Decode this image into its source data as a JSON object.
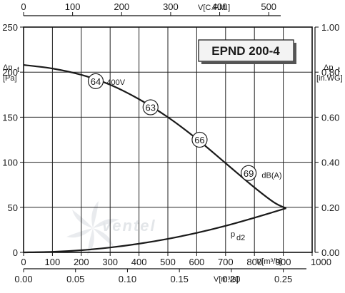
{
  "chart_data": {
    "type": "line",
    "title": "EPND 200-4",
    "x_axes": {
      "bottom": {
        "label": "V[m³/h]",
        "ticks": [
          "0",
          "100",
          "200",
          "300",
          "400",
          "500",
          "600",
          "700",
          "800",
          "900",
          "1000"
        ],
        "range": [
          0,
          1000
        ]
      },
      "top": {
        "label": "V[C.F.M.]",
        "ticks": [
          "0",
          "100",
          "200",
          "300",
          "400",
          "500"
        ],
        "tick_values_m3h": [
          0,
          169.9,
          339.8,
          509.7,
          679.6,
          849.5
        ]
      },
      "bottom2": {
        "label": "V[m³/s]",
        "ticks": [
          "0.00",
          "0.05",
          "0.10",
          "0.15",
          "0.20",
          "0.25"
        ],
        "tick_values_m3h": [
          0,
          180,
          360,
          540,
          720,
          900
        ]
      }
    },
    "y_axes": {
      "left": {
        "label_main": "Δp",
        "label_sub": "t",
        "unit": "[Pa]",
        "ticks": [
          "0",
          "50",
          "100",
          "150",
          "200",
          "250"
        ],
        "range": [
          0,
          250
        ]
      },
      "right": {
        "label_main": "Δp",
        "label_sub": "t",
        "unit": "[in.WG]",
        "ticks": [
          "0.00",
          "0.20",
          "0.40",
          "0.60",
          "0.80",
          "1.00"
        ],
        "tick_values_pa": [
          0,
          50,
          100,
          150,
          200,
          250
        ]
      }
    },
    "grid": true,
    "series": [
      {
        "name": "400V",
        "x": [
          0,
          100,
          200,
          300,
          400,
          500,
          600,
          700,
          800,
          870,
          910
        ],
        "y": [
          208,
          204,
          197,
          186,
          170,
          150,
          126,
          99,
          72,
          55,
          49
        ]
      },
      {
        "name": "p",
        "name_sub": "d2",
        "x": [
          0,
          100,
          200,
          300,
          400,
          500,
          600,
          700,
          800,
          910
        ],
        "y": [
          0,
          0.6,
          2.4,
          5.4,
          9.6,
          15,
          21.6,
          29.4,
          38.4,
          49
        ]
      }
    ],
    "annotations": [
      {
        "text": "64",
        "x": 250,
        "y": 190
      },
      {
        "text": "63",
        "x": 440,
        "y": 161
      },
      {
        "text": "66",
        "x": 610,
        "y": 125
      },
      {
        "text": "69",
        "x": 780,
        "y": 88
      },
      {
        "text": "400V",
        "x": 320,
        "y": 189
      },
      {
        "text": "dB(A)",
        "x": 860,
        "y": 86
      }
    ]
  },
  "watermark": "ventel"
}
